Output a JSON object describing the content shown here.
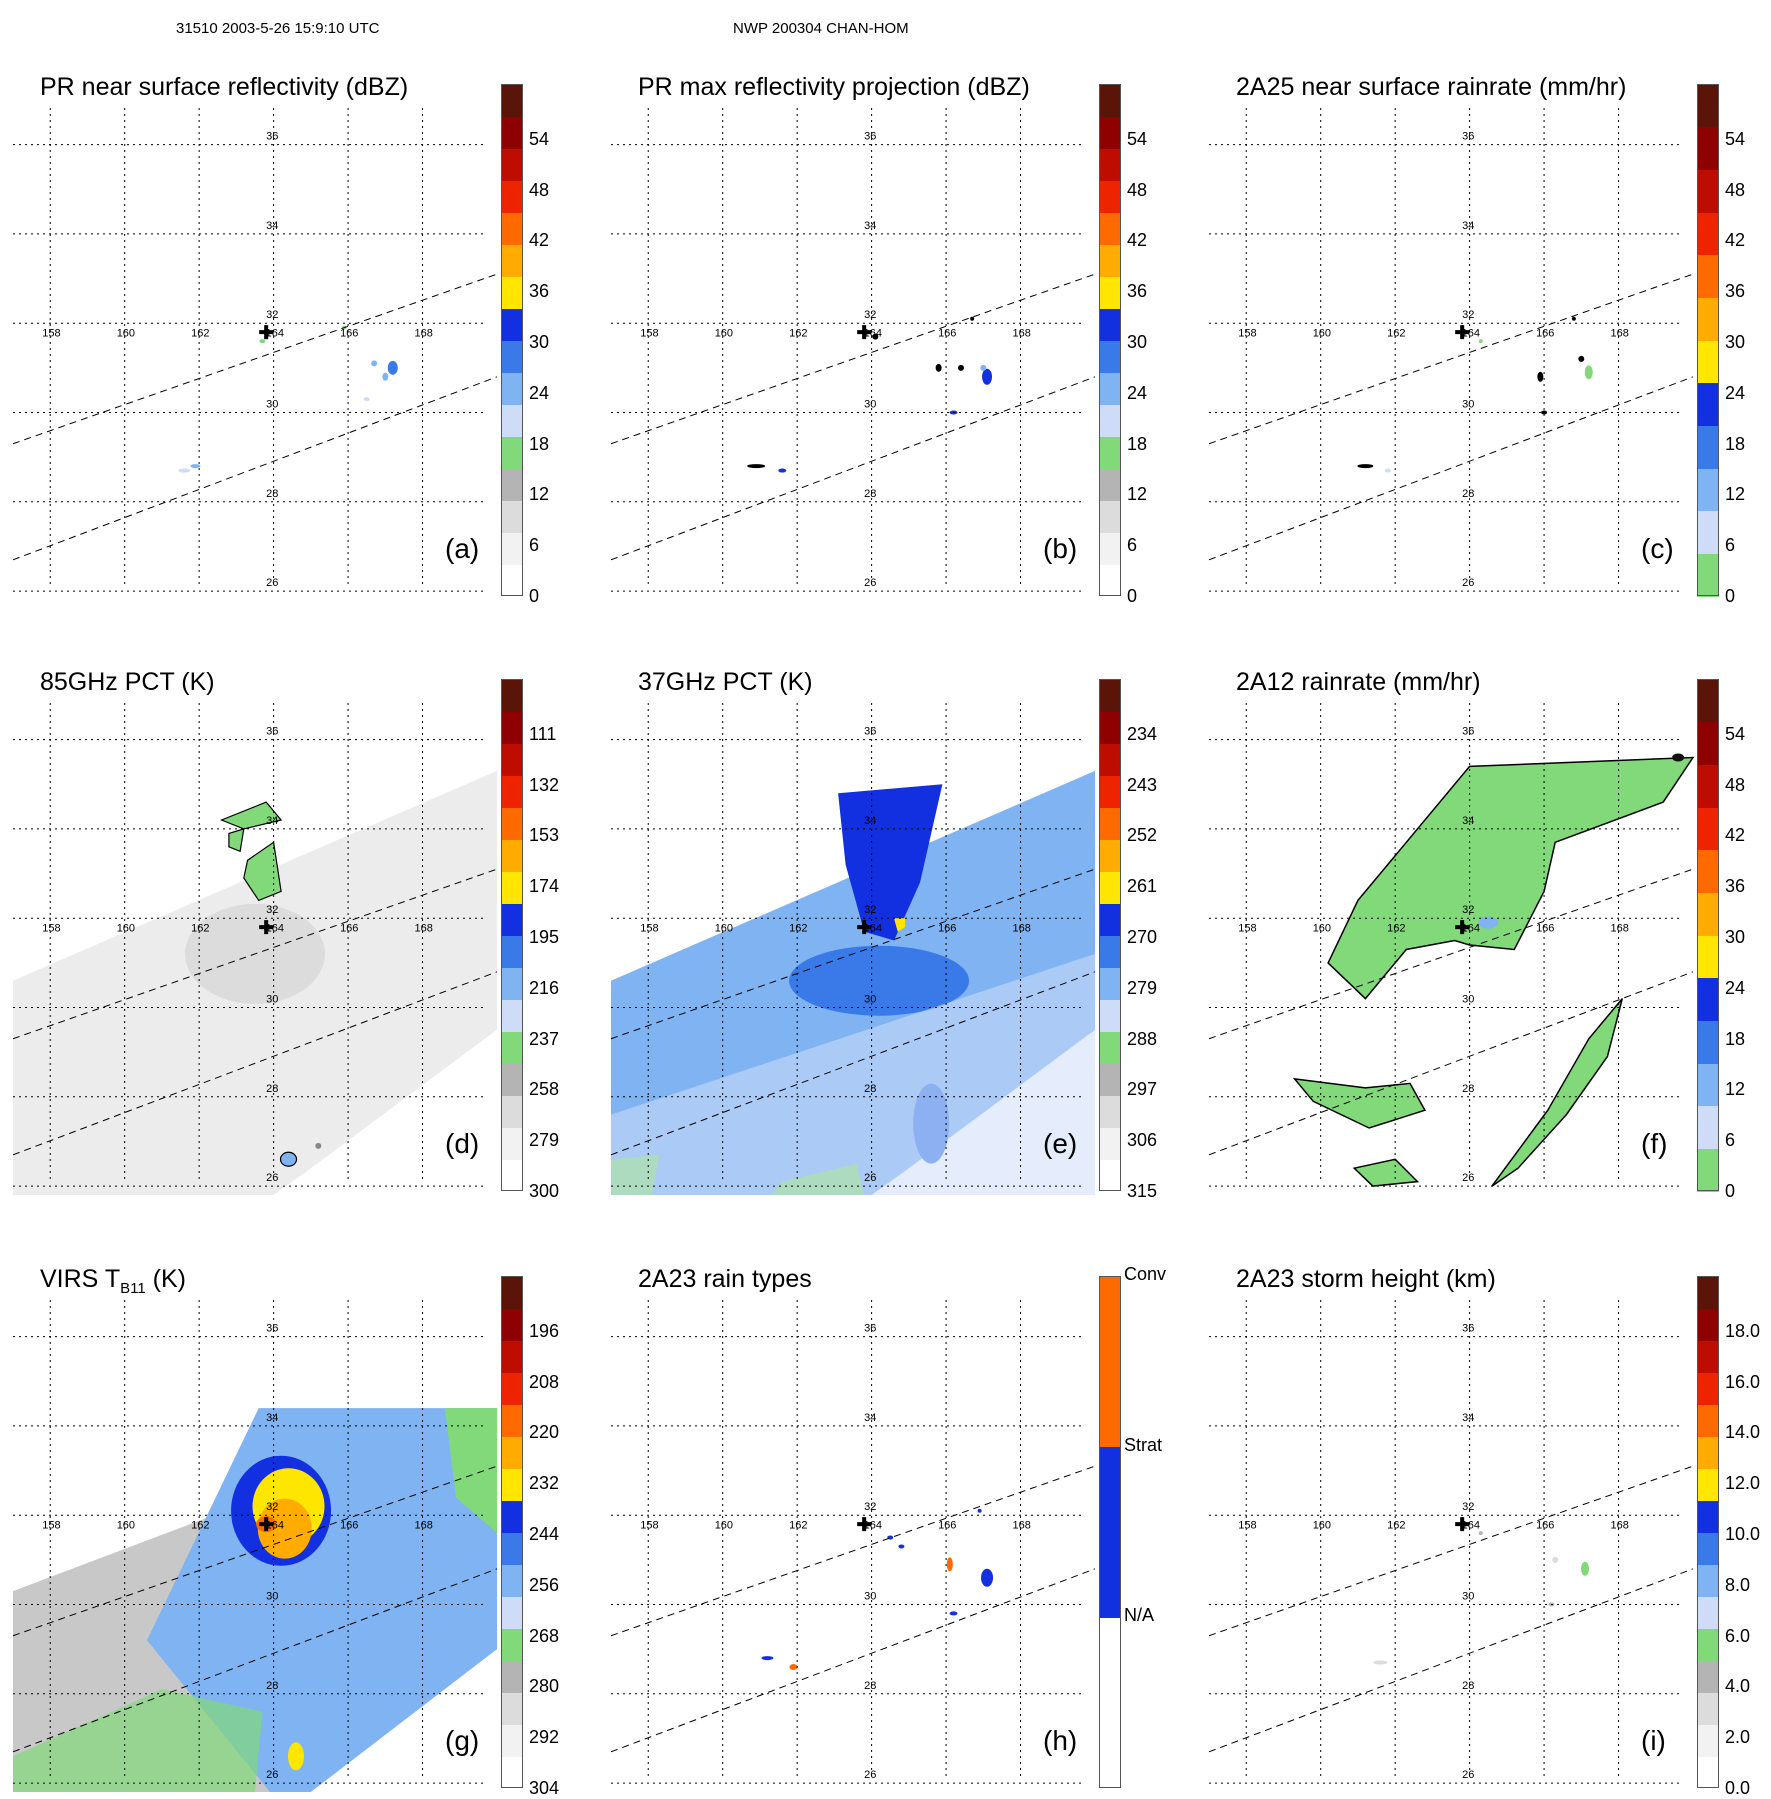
{
  "header": {
    "left": "31510 2003-5-26 15:9:10 UTC",
    "center": "NWP 200304 CHAN-HOM"
  },
  "colors": {
    "n0": "#ffffff",
    "n1": "#f2f2f2",
    "n2": "#dcdcdc",
    "n3": "#b4b4b4",
    "g1": "#82d97a",
    "g2": "#5cc05a",
    "b1": "#cfdcf7",
    "b2": "#7fb3f2",
    "b3": "#3a7ae8",
    "b4": "#1230e0",
    "y": "#ffe600",
    "o1": "#ffab00",
    "o2": "#ff6a00",
    "r1": "#ee2400",
    "r2": "#bf0c00",
    "r3": "#8f0000",
    "r4": "#5a1408"
  },
  "chart_data": [
    {
      "id": "a",
      "type": "heatmap",
      "panel_label": "(a)",
      "title": "PR near surface reflectivity (dBZ)",
      "colorbar": {
        "ticks": [
          "0",
          "6",
          "12",
          "18",
          "24",
          "30",
          "36",
          "42",
          "48",
          "54"
        ],
        "segments": [
          "n0",
          "n1",
          "n2",
          "n3",
          "g1",
          "b1",
          "b2",
          "b3",
          "b4",
          "y",
          "o1",
          "o2",
          "r1",
          "r2",
          "r3",
          "r4"
        ]
      },
      "field": "swath_pr"
    },
    {
      "id": "b",
      "type": "heatmap",
      "panel_label": "(b)",
      "title": "PR max reflectivity projection (dBZ)",
      "colorbar": {
        "ticks": [
          "0",
          "6",
          "12",
          "18",
          "24",
          "30",
          "36",
          "42",
          "48",
          "54"
        ],
        "segments": [
          "n0",
          "n1",
          "n2",
          "n3",
          "g1",
          "b1",
          "b2",
          "b3",
          "b4",
          "y",
          "o1",
          "o2",
          "r1",
          "r2",
          "r3",
          "r4"
        ]
      },
      "field": "swath_pr_max"
    },
    {
      "id": "c",
      "type": "heatmap",
      "panel_label": "(c)",
      "title": "2A25 near surface rainrate (mm/hr)",
      "colorbar": {
        "ticks": [
          "0",
          "6",
          "12",
          "18",
          "24",
          "30",
          "36",
          "42",
          "48",
          "54"
        ],
        "segments": [
          "g1",
          "b1",
          "b2",
          "b3",
          "b4",
          "y",
          "o1",
          "o2",
          "r1",
          "r2",
          "r3",
          "r4"
        ]
      },
      "field": "swath_rain"
    },
    {
      "id": "d",
      "type": "heatmap",
      "panel_label": "(d)",
      "title": "85GHz PCT (K)",
      "colorbar": {
        "ticks": [
          "300",
          "279",
          "258",
          "237",
          "216",
          "195",
          "174",
          "153",
          "132",
          "111"
        ],
        "segments": [
          "n0",
          "n1",
          "n2",
          "n3",
          "g1",
          "b1",
          "b2",
          "b3",
          "b4",
          "y",
          "o1",
          "o2",
          "r1",
          "r2",
          "r3",
          "r4"
        ]
      },
      "field": "tmi85"
    },
    {
      "id": "e",
      "type": "heatmap",
      "panel_label": "(e)",
      "title": "37GHz PCT (K)",
      "colorbar": {
        "ticks": [
          "315",
          "306",
          "297",
          "288",
          "279",
          "270",
          "261",
          "252",
          "243",
          "234"
        ],
        "segments": [
          "n0",
          "n1",
          "n2",
          "n3",
          "g1",
          "b1",
          "b2",
          "b3",
          "b4",
          "y",
          "o1",
          "o2",
          "r1",
          "r2",
          "r3",
          "r4"
        ]
      },
      "field": "tmi37"
    },
    {
      "id": "f",
      "type": "heatmap",
      "panel_label": "(f)",
      "title": "2A12 rainrate (mm/hr)",
      "colorbar": {
        "ticks": [
          "0",
          "6",
          "12",
          "18",
          "24",
          "30",
          "36",
          "42",
          "48",
          "54"
        ],
        "segments": [
          "g1",
          "b1",
          "b2",
          "b3",
          "b4",
          "y",
          "o1",
          "o2",
          "r1",
          "r2",
          "r3",
          "r4"
        ]
      },
      "field": "tmi_rain"
    },
    {
      "id": "g",
      "type": "heatmap",
      "panel_label": "(g)",
      "title": "VIRS T",
      "title_sub": "B11",
      "title_unit": " (K)",
      "colorbar": {
        "ticks": [
          "304",
          "292",
          "280",
          "268",
          "256",
          "244",
          "232",
          "220",
          "208",
          "196"
        ],
        "segments": [
          "n0",
          "n1",
          "n2",
          "n3",
          "g1",
          "b1",
          "b2",
          "b3",
          "b4",
          "y",
          "o1",
          "o2",
          "r1",
          "r2",
          "r3",
          "r4"
        ]
      },
      "field": "virs"
    },
    {
      "id": "h",
      "type": "heatmap",
      "panel_label": "(h)",
      "title": "2A23 rain types",
      "colorbar": {
        "categories": [
          "N/A",
          "Strat",
          "Conv"
        ]
      },
      "field": "raintype"
    },
    {
      "id": "i",
      "type": "heatmap",
      "panel_label": "(i)",
      "title": "2A23 storm height (km)",
      "colorbar": {
        "ticks": [
          "0.0",
          "2.0",
          "4.0",
          "6.0",
          "8.0",
          "10.0",
          "12.0",
          "14.0",
          "16.0",
          "18.0"
        ],
        "segments": [
          "n0",
          "n1",
          "n2",
          "n3",
          "g1",
          "b1",
          "b2",
          "b3",
          "b4",
          "y",
          "o1",
          "o2",
          "r1",
          "r2",
          "r3",
          "r4"
        ]
      },
      "field": "height"
    }
  ],
  "map": {
    "lon_ticks": [
      "158",
      "160",
      "162",
      "164",
      "166",
      "168"
    ],
    "lat_ticks": [
      "26",
      "28",
      "30",
      "32",
      "34",
      "36"
    ],
    "lon_range": [
      157,
      170
    ],
    "lat_range": [
      25.8,
      37
    ],
    "storm_center": {
      "lon": 163.8,
      "lat": 31.8
    },
    "swath_edges": [
      {
        "name": "north edge",
        "lon_start": 157,
        "lat_start": 29.3,
        "lon_end": 170,
        "lat_end": 33.1
      },
      {
        "name": "south edge",
        "lon_start": 157,
        "lat_start": 26.7,
        "lon_end": 170,
        "lat_end": 30.8
      }
    ]
  }
}
